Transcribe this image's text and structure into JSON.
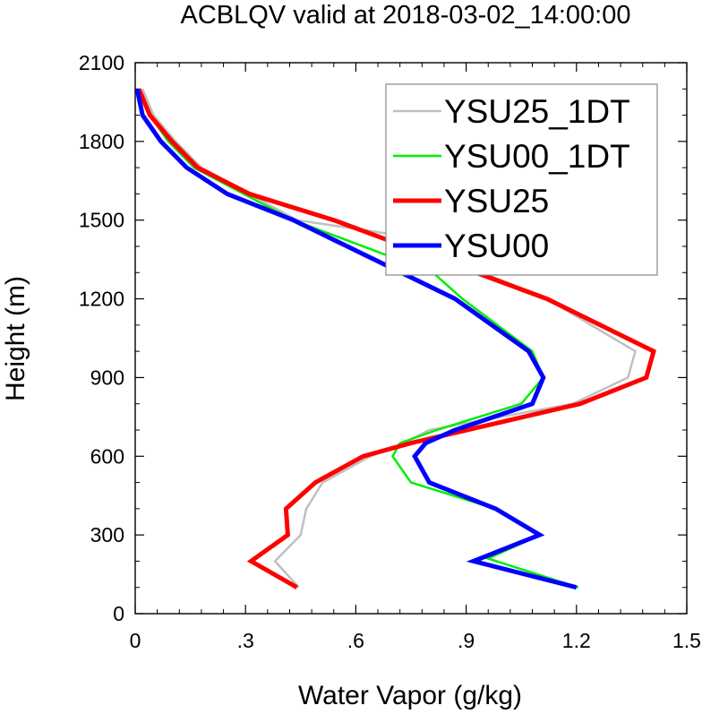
{
  "chart_data": {
    "type": "line",
    "title": "ACBLQV valid at 2018-03-02_14:00:00",
    "xlabel": "Water Vapor (g/kg)",
    "ylabel": "Height (m)",
    "xlim": [
      0,
      1.5
    ],
    "ylim": [
      0,
      2100
    ],
    "xticks": [
      0,
      0.3,
      0.6,
      0.9,
      1.2,
      1.5
    ],
    "xtick_labels": [
      "0",
      ".3",
      ".6",
      ".9",
      "1.2",
      "1.5"
    ],
    "yticks": [
      0,
      300,
      600,
      900,
      1200,
      1500,
      1800,
      2100
    ],
    "ytick_labels": [
      "0",
      "300",
      "600",
      "900",
      "1200",
      "1500",
      "1800",
      "2100"
    ],
    "grid": false,
    "legend_position": "top-right",
    "series": [
      {
        "name": "YSU25_1DT",
        "color": "#c0c0c0",
        "width": "thin",
        "points": [
          [
            0.445,
            100
          ],
          [
            0.38,
            200
          ],
          [
            0.45,
            300
          ],
          [
            0.465,
            400
          ],
          [
            0.51,
            500
          ],
          [
            0.64,
            600
          ],
          [
            0.73,
            650
          ],
          [
            0.8,
            700
          ],
          [
            1.19,
            800
          ],
          [
            1.34,
            900
          ],
          [
            1.36,
            1000
          ],
          [
            1.12,
            1200
          ],
          [
            0.68,
            1450
          ],
          [
            0.44,
            1500
          ],
          [
            0.18,
            1700
          ],
          [
            0.11,
            1800
          ],
          [
            0.05,
            1900
          ],
          [
            0.02,
            2000
          ]
        ]
      },
      {
        "name": "YSU00_1DT",
        "color": "#00ee00",
        "width": "thin",
        "points": [
          [
            1.205,
            100
          ],
          [
            0.96,
            210
          ],
          [
            1.1,
            300
          ],
          [
            0.98,
            400
          ],
          [
            0.75,
            500
          ],
          [
            0.7,
            600
          ],
          [
            0.72,
            650
          ],
          [
            0.82,
            700
          ],
          [
            1.05,
            800
          ],
          [
            1.11,
            900
          ],
          [
            1.08,
            1000
          ],
          [
            0.89,
            1200
          ],
          [
            0.81,
            1300
          ],
          [
            0.43,
            1500
          ],
          [
            0.16,
            1700
          ],
          [
            0.09,
            1800
          ],
          [
            0.04,
            1900
          ],
          [
            0.01,
            2000
          ]
        ]
      },
      {
        "name": "YSU25",
        "color": "#ff0000",
        "width": "thick",
        "points": [
          [
            0.44,
            100
          ],
          [
            0.315,
            200
          ],
          [
            0.415,
            300
          ],
          [
            0.41,
            400
          ],
          [
            0.49,
            500
          ],
          [
            0.62,
            600
          ],
          [
            0.75,
            650
          ],
          [
            1.21,
            800
          ],
          [
            1.39,
            900
          ],
          [
            1.41,
            1000
          ],
          [
            1.12,
            1200
          ],
          [
            0.54,
            1500
          ],
          [
            0.31,
            1600
          ],
          [
            0.17,
            1700
          ],
          [
            0.1,
            1800
          ],
          [
            0.04,
            1900
          ],
          [
            0.01,
            2000
          ]
        ]
      },
      {
        "name": "YSU00",
        "color": "#0000ff",
        "width": "thick",
        "points": [
          [
            1.2,
            100
          ],
          [
            0.92,
            200
          ],
          [
            1.1,
            300
          ],
          [
            0.98,
            400
          ],
          [
            0.8,
            500
          ],
          [
            0.76,
            600
          ],
          [
            0.79,
            650
          ],
          [
            0.87,
            700
          ],
          [
            1.08,
            800
          ],
          [
            1.11,
            900
          ],
          [
            1.07,
            1000
          ],
          [
            0.87,
            1200
          ],
          [
            0.43,
            1500
          ],
          [
            0.25,
            1600
          ],
          [
            0.14,
            1700
          ],
          [
            0.07,
            1800
          ],
          [
            0.02,
            1900
          ],
          [
            0.005,
            2000
          ]
        ]
      }
    ]
  }
}
